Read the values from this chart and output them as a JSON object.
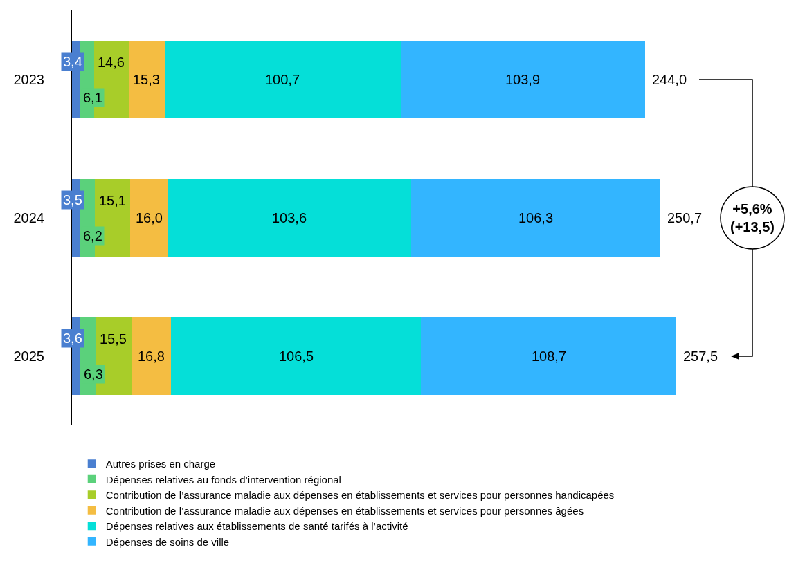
{
  "chart_data": {
    "type": "bar",
    "orientation": "horizontal",
    "stacked": true,
    "categories": [
      "2023",
      "2024",
      "2025"
    ],
    "series": [
      {
        "name": "Autres prises en charge",
        "color": "#4a7fd0",
        "values": [
          3.4,
          3.5,
          3.6
        ],
        "value_labels": [
          "3,4",
          "3,5",
          "3,6"
        ]
      },
      {
        "name": "Dépenses relatives au fonds d’intervention régional",
        "color": "#5bd17b",
        "values": [
          6.1,
          6.2,
          6.3
        ],
        "value_labels": [
          "6,1",
          "6,2",
          "6,3"
        ]
      },
      {
        "name": "Contribution de l’assurance maladie aux dépenses en établissements et services pour personnes handicapées",
        "color": "#a8cd29",
        "values": [
          14.6,
          15.1,
          15.5
        ],
        "value_labels": [
          "14,6",
          "15,1",
          "15,5"
        ]
      },
      {
        "name": "Contribution de l’assurance maladie aux dépenses en établissements et services pour personnes âgées",
        "color": "#f4bd42",
        "values": [
          15.3,
          16.0,
          16.8
        ],
        "value_labels": [
          "15,3",
          "16,0",
          "16,8"
        ]
      },
      {
        "name": "Dépenses relatives aux établissements de santé tarifés à l’activité",
        "color": "#05dfd8",
        "values": [
          100.7,
          103.6,
          106.5
        ],
        "value_labels": [
          "100,7",
          "103,6",
          "106,5"
        ]
      },
      {
        "name": "Dépenses de soins de ville",
        "color": "#33b5ff",
        "values": [
          103.9,
          106.3,
          108.7
        ],
        "value_labels": [
          "103,9",
          "106,3",
          "108,7"
        ]
      }
    ],
    "totals": [
      "244,0",
      "250,7",
      "257,5"
    ],
    "annotations": [
      "+5,6%\n(+13,5)"
    ],
    "legend": "bottom"
  }
}
